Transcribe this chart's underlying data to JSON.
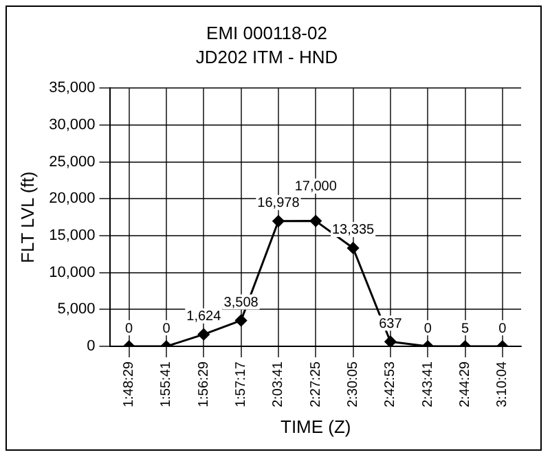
{
  "chart_data": {
    "type": "line",
    "title": "EMI 000118-02",
    "subtitle": "JD202 ITM - HND",
    "xlabel": "TIME (Z)",
    "ylabel": "FLT LVL (ft)",
    "categories": [
      "1:48:29",
      "1:55:41",
      "1:56:29",
      "1:57:17",
      "2:03:41",
      "2:27:25",
      "2:30:05",
      "2:42:53",
      "2:43:41",
      "2:44:29",
      "3:10:04"
    ],
    "values": [
      0,
      0,
      1624,
      3508,
      16978,
      17000,
      13335,
      637,
      0,
      5,
      0
    ],
    "value_labels": [
      "0",
      "0",
      "1,624",
      "3,508",
      "16,978",
      "17,000",
      "13,335",
      "637",
      "0",
      "5",
      "0"
    ],
    "color": "#000000",
    "marker": "diamond",
    "line_style": "solid",
    "ylim": [
      0,
      35000
    ],
    "yticks": [
      {
        "value": 0,
        "label": "0"
      },
      {
        "value": 5000,
        "label": "5,000"
      },
      {
        "value": 10000,
        "label": "10,000"
      },
      {
        "value": 15000,
        "label": "15,000"
      },
      {
        "value": 20000,
        "label": "20,000"
      },
      {
        "value": 25000,
        "label": "25,000"
      },
      {
        "value": 30000,
        "label": "30,000"
      },
      {
        "value": 35000,
        "label": "35,000"
      }
    ],
    "grid": true,
    "legend": false
  }
}
